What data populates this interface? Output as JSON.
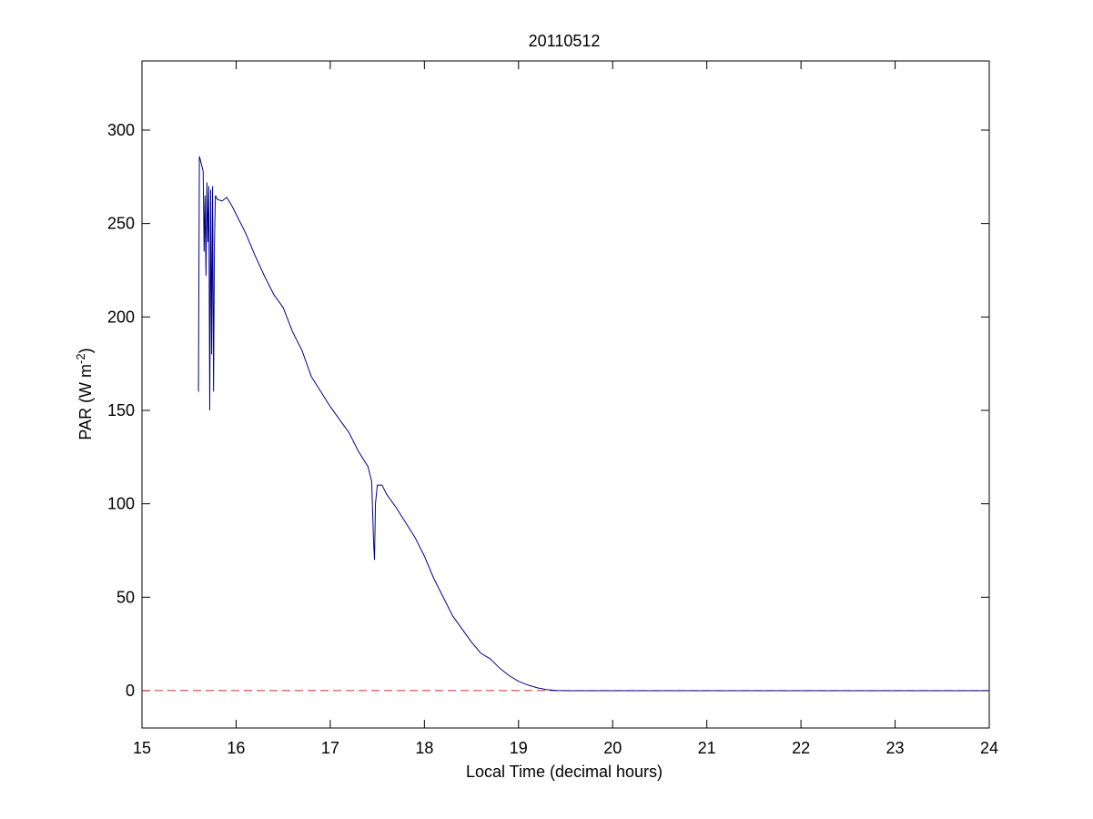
{
  "chart_data": {
    "type": "line",
    "title": "20110512",
    "xlabel": "Local Time (decimal hours)",
    "ylabel": "PAR (W m",
    "ylabel_sup": "-2",
    "ylabel_end": ")",
    "series": [
      {
        "color": "#00008b",
        "x": [
          15.6,
          15.605,
          15.61,
          15.63,
          15.65,
          15.66,
          15.67,
          15.68,
          15.69,
          15.7,
          15.71,
          15.72,
          15.73,
          15.74,
          15.75,
          15.76,
          15.77,
          15.78,
          15.8,
          15.85,
          15.9,
          15.95,
          16.0,
          16.1,
          16.2,
          16.3,
          16.4,
          16.5,
          16.6,
          16.7,
          16.8,
          16.9,
          17.0,
          17.1,
          17.2,
          17.3,
          17.4,
          17.44,
          17.46,
          17.47,
          17.48,
          17.5,
          17.55,
          17.6,
          17.7,
          17.8,
          17.9,
          18.0,
          18.1,
          18.2,
          18.3,
          18.4,
          18.5,
          18.6,
          18.7,
          18.8,
          18.9,
          19.0,
          19.1,
          19.2,
          19.3,
          19.4,
          19.5,
          24
        ],
        "values": [
          160,
          225,
          286,
          282,
          278,
          235,
          265,
          222,
          272,
          240,
          270,
          150,
          268,
          180,
          270,
          160,
          240,
          265,
          263,
          262,
          264,
          260,
          255,
          245,
          233,
          222,
          212,
          205,
          192,
          182,
          168,
          160,
          152,
          145,
          138,
          128,
          120,
          112,
          80,
          70,
          100,
          110,
          110,
          105,
          98,
          90,
          82,
          72,
          60,
          50,
          40,
          33,
          26,
          20,
          17,
          12,
          8,
          5,
          3,
          1.5,
          0.5,
          0.1,
          0,
          0
        ]
      }
    ],
    "hline": {
      "value": 0,
      "color": "#d62728"
    },
    "xlim": [
      15,
      24
    ],
    "xticks": [
      15,
      16,
      17,
      18,
      19,
      20,
      21,
      22,
      23,
      24
    ],
    "ylim": [
      -20,
      337
    ],
    "yticks": [
      0,
      50,
      100,
      150,
      200,
      250,
      300
    ]
  }
}
